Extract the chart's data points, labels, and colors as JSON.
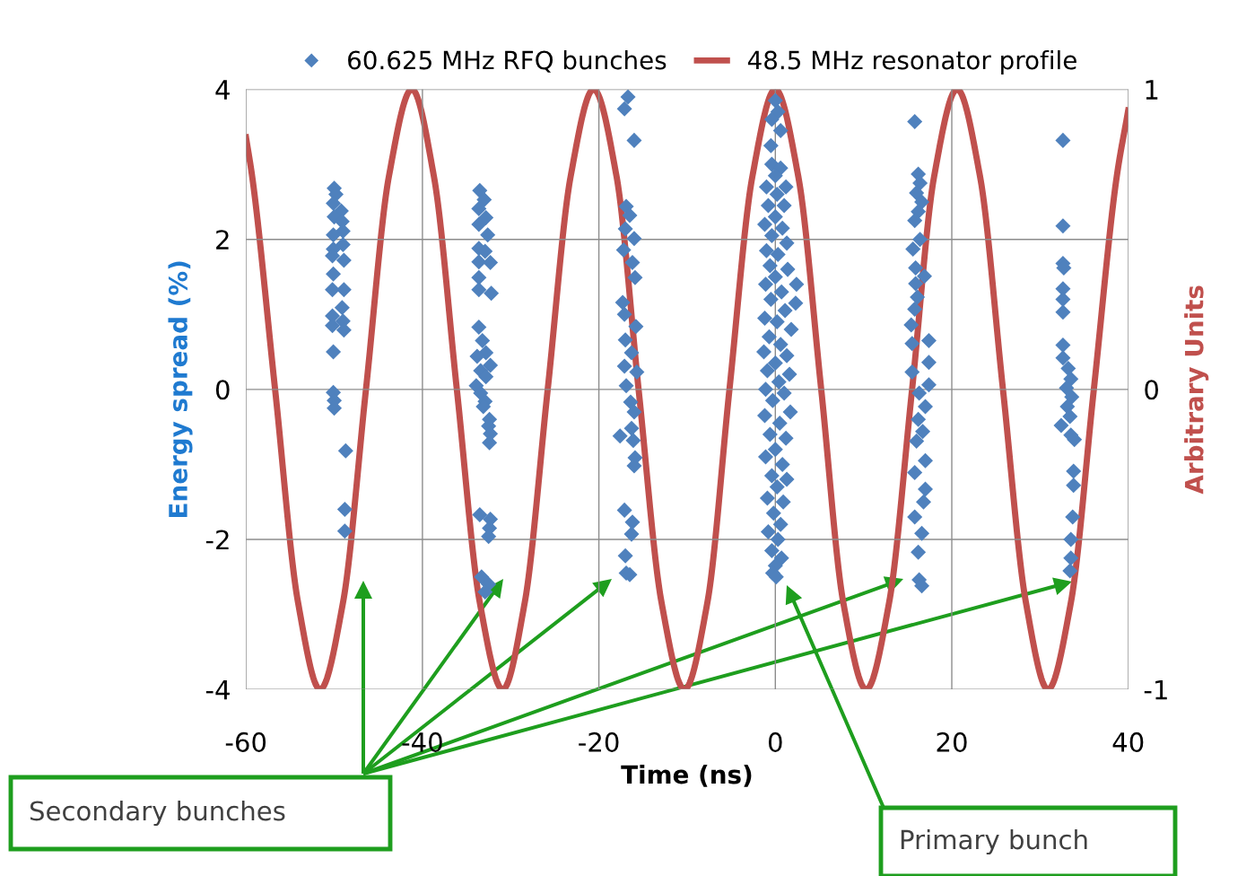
{
  "chart_data": {
    "type": "scatter",
    "xlabel": "Time (ns)",
    "ylabel": "Energy spread (%)",
    "y2label": "Arbitrary Units",
    "xlim": [
      -60,
      40
    ],
    "xticks": [
      -60,
      -40,
      -20,
      0,
      20,
      40
    ],
    "ylim": [
      -4,
      4
    ],
    "yticks": [
      -4,
      -2,
      0,
      2,
      4
    ],
    "y2lim": [
      -1,
      1
    ],
    "y2ticks": [
      -1,
      0,
      1
    ],
    "grid": true,
    "legend": "top",
    "series": [
      {
        "name": "60.625 MHz RFQ bunches",
        "marker": "diamond",
        "color": "#4f81bd",
        "x": [
          -50.0,
          -49.8,
          -50.1,
          -49.2,
          -50.0,
          -49.1,
          -49.0,
          -50.1,
          -49.0,
          -50.1,
          -50.2,
          -48.9,
          -50.1,
          -50.2,
          -48.9,
          -49.1,
          -50.2,
          -49.0,
          -50.2,
          -48.9,
          -50.1,
          -50.1,
          -50.0,
          -50.0,
          -48.7,
          -48.8,
          -48.8,
          -33.5,
          -33.0,
          -33.6,
          -32.8,
          -33.6,
          -32.6,
          -33.6,
          -32.9,
          -33.6,
          -32.3,
          -33.6,
          -33.6,
          -32.2,
          -33.6,
          -33.2,
          -32.8,
          -33.8,
          -32.3,
          -33.4,
          -32.8,
          -33.9,
          -33.4,
          -32.9,
          -33.1,
          -32.4,
          -32.5,
          -32.3,
          -32.4,
          -33.5,
          -32.3,
          -32.4,
          -32.5,
          -33.3,
          -32.5,
          -32.9,
          -16.7,
          -17.1,
          -16.0,
          -16.9,
          -16.5,
          -17.0,
          -16.0,
          -17.2,
          -16.2,
          -15.9,
          -17.3,
          -17.1,
          -15.8,
          -17.0,
          -16.3,
          -17.1,
          -15.7,
          -16.9,
          -16.4,
          -16.0,
          -16.3,
          -17.6,
          -16.1,
          -15.9,
          -16.0,
          -17.1,
          -16.2,
          -16.3,
          -17.0,
          -16.5,
          -16.9,
          0.0,
          0.3,
          -0.4,
          0.6,
          -0.5,
          -0.4,
          0.6,
          0.0,
          -1.0,
          1.2,
          0.2,
          -0.8,
          1.0,
          0.0,
          -1.2,
          0.8,
          -0.4,
          1.3,
          -1.0,
          0.3,
          -0.6,
          1.4,
          0.0,
          -1.1,
          2.4,
          0.7,
          -0.5,
          2.3,
          1.1,
          -1.2,
          0.2,
          1.8,
          -0.7,
          0.6,
          -1.3,
          1.3,
          0.0,
          -0.9,
          1.6,
          0.4,
          -1.1,
          1.0,
          -0.3,
          1.7,
          -1.2,
          0.5,
          -0.6,
          1.2,
          0.0,
          -1.1,
          0.8,
          -0.4,
          1.3,
          0.2,
          -0.9,
          0.9,
          -0.2,
          0.6,
          -0.8,
          0.3,
          -0.4,
          0.7,
          0.0,
          -0.3,
          0.1,
          15.8,
          16.2,
          16.4,
          16.0,
          16.6,
          16.2,
          15.8,
          16.4,
          15.6,
          15.9,
          16.9,
          15.9,
          16.1,
          15.8,
          15.4,
          17.4,
          15.5,
          17.4,
          15.5,
          16.3,
          17.0,
          16.2,
          16.7,
          16.0,
          17.0,
          15.8,
          17.0,
          16.8,
          15.8,
          16.6,
          16.2,
          16.3,
          16.6,
          17.4,
          32.6,
          32.6,
          32.6,
          32.7,
          32.6,
          32.6,
          32.6,
          32.6,
          32.6,
          33.2,
          33.5,
          33.0,
          33.6,
          33.1,
          33.4,
          32.4,
          33.5,
          33.9,
          33.8,
          33.8,
          33.7,
          33.5,
          33.5,
          33.4
        ],
        "values": [
          2.68,
          2.6,
          2.48,
          2.38,
          2.3,
          2.24,
          2.11,
          2.06,
          1.93,
          1.87,
          1.78,
          1.72,
          1.54,
          1.33,
          1.33,
          1.09,
          0.98,
          0.91,
          0.85,
          0.79,
          0.5,
          -0.04,
          -0.15,
          -0.25,
          -0.82,
          -1.6,
          -1.89,
          2.65,
          2.53,
          2.41,
          2.29,
          2.2,
          2.06,
          1.88,
          1.84,
          1.7,
          1.69,
          1.49,
          1.33,
          1.28,
          0.83,
          0.65,
          0.49,
          0.44,
          0.32,
          0.25,
          0.17,
          0.05,
          -0.05,
          -0.16,
          -0.23,
          -0.4,
          -0.49,
          -0.59,
          -0.71,
          -1.67,
          -1.73,
          -1.85,
          -1.96,
          -2.5,
          -2.6,
          -2.7,
          3.9,
          3.74,
          3.32,
          2.44,
          2.32,
          2.14,
          2.01,
          1.86,
          1.69,
          1.49,
          1.16,
          1.0,
          0.84,
          0.66,
          0.49,
          0.31,
          0.23,
          0.05,
          -0.17,
          -0.3,
          -0.52,
          -0.62,
          -0.68,
          -0.91,
          -1.02,
          -1.61,
          -1.77,
          -1.93,
          -2.22,
          -2.47,
          -2.45,
          3.85,
          3.7,
          3.6,
          3.45,
          3.25,
          3.0,
          2.95,
          2.85,
          2.7,
          2.7,
          2.6,
          2.45,
          2.45,
          2.3,
          2.2,
          2.15,
          2.05,
          1.95,
          1.85,
          1.8,
          1.65,
          1.6,
          1.5,
          1.4,
          1.4,
          1.3,
          1.2,
          1.15,
          1.05,
          0.95,
          0.9,
          0.8,
          0.7,
          0.6,
          0.5,
          0.45,
          0.35,
          0.25,
          0.2,
          0.1,
          0.0,
          -0.05,
          -0.15,
          -0.3,
          -0.35,
          -0.45,
          -0.6,
          -0.65,
          -0.8,
          -0.9,
          -1.0,
          -1.15,
          -1.2,
          -1.3,
          -1.45,
          -1.5,
          -1.65,
          -1.8,
          -1.9,
          -2.0,
          -2.15,
          -2.25,
          -2.35,
          -2.45,
          -2.5,
          3.57,
          2.87,
          2.75,
          2.62,
          2.5,
          2.37,
          2.25,
          2.0,
          1.87,
          1.62,
          1.51,
          1.41,
          1.23,
          1.07,
          0.86,
          0.65,
          0.61,
          0.36,
          0.23,
          -0.05,
          -0.23,
          -0.4,
          -0.56,
          -0.69,
          -0.95,
          -1.11,
          -1.33,
          -1.5,
          -1.7,
          -1.92,
          -2.17,
          -2.54,
          -2.62,
          0.06,
          3.32,
          2.18,
          1.68,
          1.62,
          1.34,
          1.2,
          1.03,
          0.59,
          0.42,
          0.28,
          0.14,
          0.02,
          -0.1,
          -0.23,
          -0.36,
          -0.48,
          -0.61,
          -0.67,
          -1.09,
          -1.28,
          -1.7,
          -2.0,
          -2.25,
          -2.42
        ]
      },
      {
        "name": "48.5 MHz resonator profile",
        "type": "line",
        "axis": "y2",
        "marker": "none",
        "line_style": "solid",
        "color": "#c0504d",
        "x": [
          -60,
          -59.3,
          -56.7,
          -54.1,
          -51.6,
          -49.0,
          -46.4,
          -43.8,
          -41.2,
          -38.7,
          -36.1,
          -33.5,
          -30.9,
          -28.4,
          -25.8,
          -23.2,
          -20.6,
          -18.0,
          -15.5,
          -12.9,
          -10.3,
          -7.7,
          -5.2,
          -2.6,
          0,
          2.6,
          5.2,
          7.7,
          10.3,
          12.9,
          15.5,
          18.0,
          20.6,
          23.2,
          25.8,
          28.4,
          30.9,
          33.5,
          36.1,
          38.7,
          40
        ],
        "values": [
          0.84,
          0.71,
          0,
          -0.71,
          -1,
          -0.71,
          0,
          0.71,
          1,
          0.71,
          0,
          -0.71,
          -1,
          -0.71,
          0,
          0.71,
          1,
          0.71,
          0,
          -0.71,
          -1,
          -0.71,
          0,
          0.71,
          1,
          0.71,
          0,
          -0.71,
          -1,
          -0.71,
          0,
          0.71,
          1,
          0.71,
          0,
          -0.71,
          -1,
          -0.71,
          0,
          0.71,
          0.93
        ]
      }
    ],
    "annotations": [
      "Secondary bunches",
      "Primary bunch"
    ]
  }
}
